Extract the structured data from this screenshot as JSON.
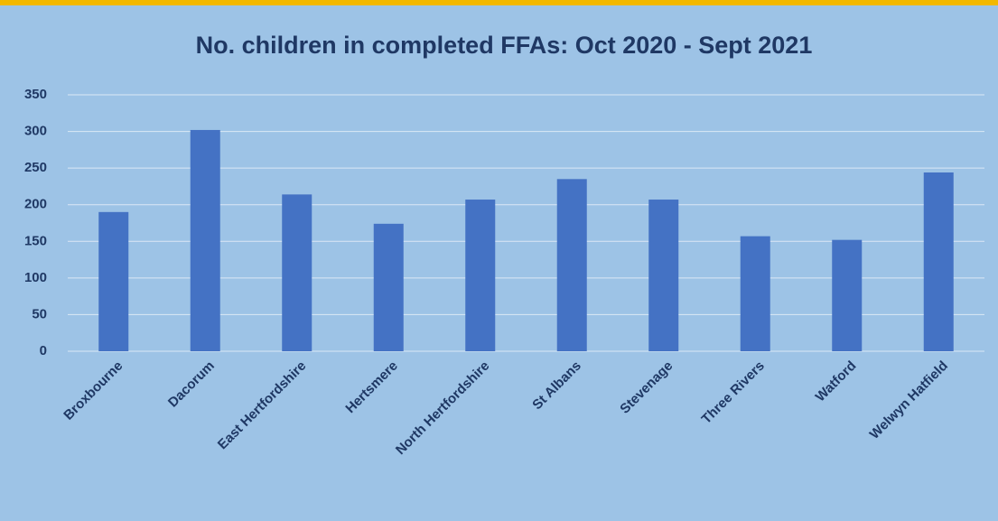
{
  "chart_data": {
    "type": "bar",
    "title": "No. children in completed FFAs: Oct 2020 - Sept 2021",
    "categories": [
      "Broxbourne",
      "Dacorum",
      "East Hertfordshire",
      "Hertsmere",
      "North Hertfordshire",
      "St Albans",
      "Stevenage",
      "Three Rivers",
      "Watford",
      "Welwyn Hatfield"
    ],
    "values": [
      190,
      302,
      214,
      174,
      207,
      235,
      207,
      157,
      152,
      244
    ],
    "color": "#4472c4",
    "ylim": [
      0,
      350
    ],
    "yticks": [
      0,
      50,
      100,
      150,
      200,
      250,
      300,
      350
    ],
    "grid": true
  }
}
